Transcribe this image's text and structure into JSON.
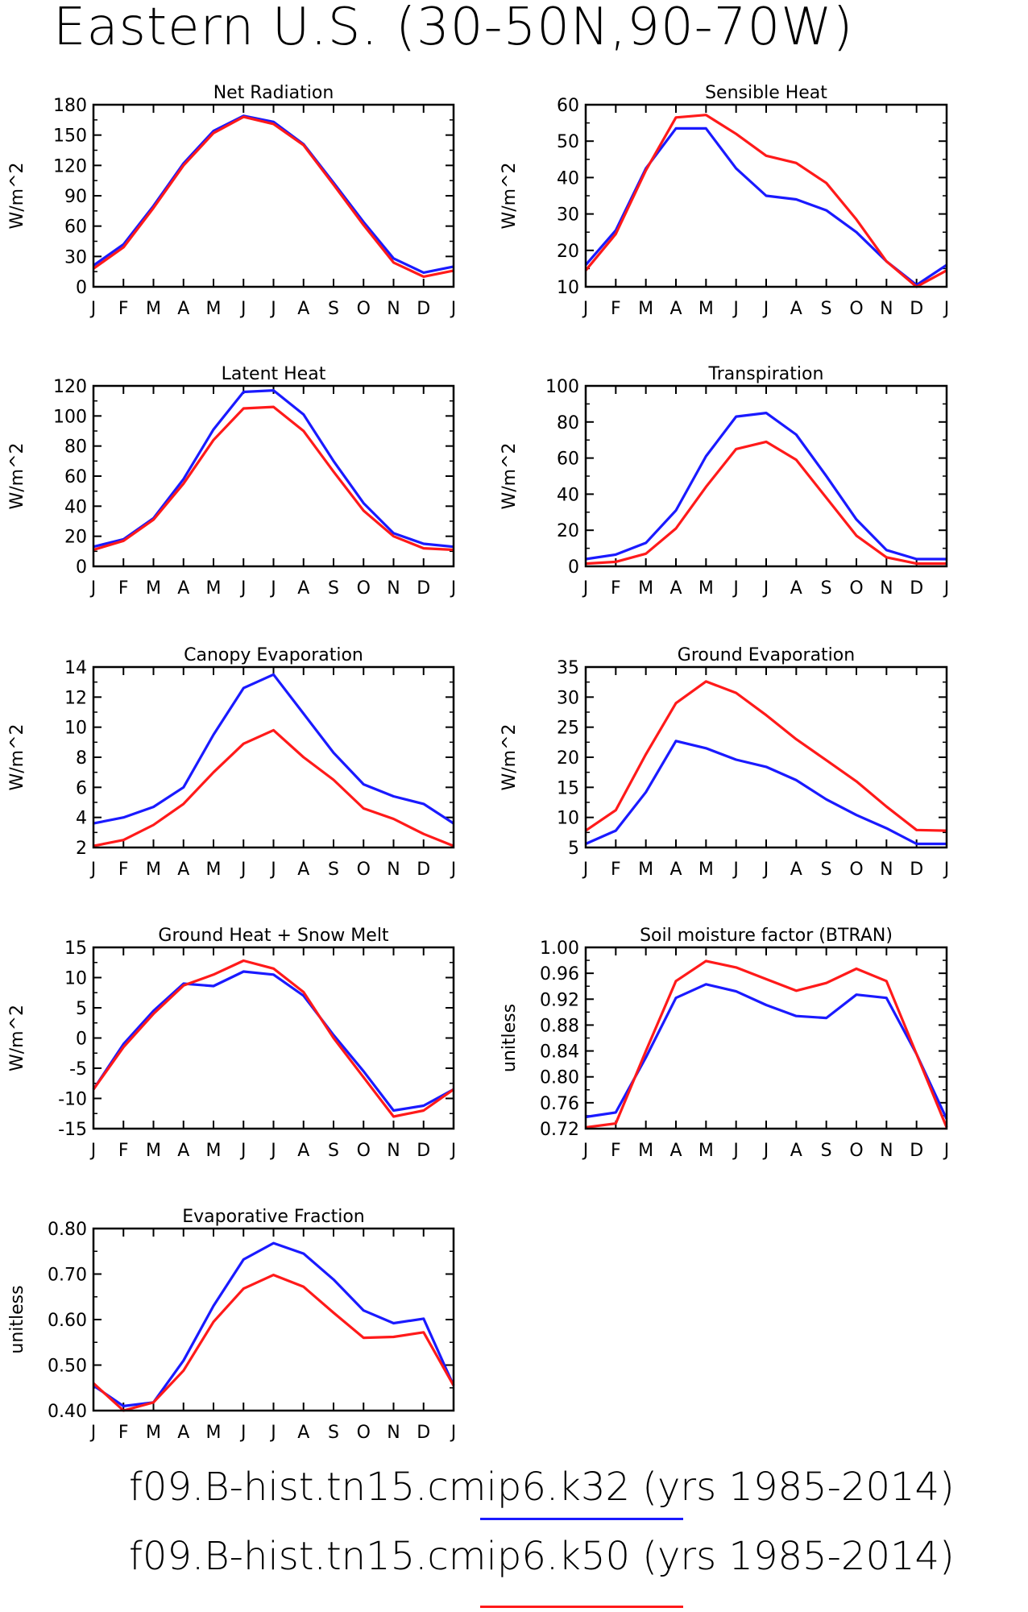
{
  "title": "Eastern U.S. (30-50N,90-70W)",
  "colors": {
    "k32": "#1a1aff",
    "k50": "#ff1a1a"
  },
  "legend": [
    {
      "label": "f09.B-hist.tn15.cmip6.k32 (yrs 1985-2014)",
      "color": "#1a1aff"
    },
    {
      "label": "f09.B-hist.tn15.cmip6.k50 (yrs 1985-2014)",
      "color": "#ff1a1a"
    }
  ],
  "chart_data": [
    {
      "type": "line",
      "title": "Net Radiation",
      "ylabel": "W/m^2",
      "categories": [
        "J",
        "F",
        "M",
        "A",
        "M",
        "J",
        "J",
        "A",
        "S",
        "O",
        "N",
        "D",
        "J"
      ],
      "ylim": [
        0,
        180
      ],
      "yticks": [
        0,
        30,
        60,
        90,
        120,
        150,
        180
      ],
      "ytick_labels": [
        "0",
        "30",
        "60",
        "90",
        "120",
        "150",
        "180"
      ],
      "series": [
        {
          "color": "#1a1aff",
          "values": [
            21,
            42,
            80,
            122,
            154,
            169,
            163,
            141,
            103,
            64,
            28,
            14,
            20
          ]
        },
        {
          "color": "#ff1a1a",
          "values": [
            18,
            39,
            78,
            120,
            152,
            168,
            161,
            140,
            101,
            61,
            24,
            10,
            16
          ]
        }
      ]
    },
    {
      "type": "line",
      "title": "Sensible Heat",
      "ylabel": "W/m^2",
      "categories": [
        "J",
        "F",
        "M",
        "A",
        "M",
        "J",
        "J",
        "A",
        "S",
        "O",
        "N",
        "D",
        "J"
      ],
      "ylim": [
        10,
        60
      ],
      "yticks": [
        10,
        20,
        30,
        40,
        50,
        60
      ],
      "ytick_labels": [
        "10",
        "20",
        "30",
        "40",
        "50",
        "60"
      ],
      "series": [
        {
          "color": "#1a1aff",
          "values": [
            16,
            25.5,
            42.5,
            53.5,
            53.5,
            42.5,
            35,
            34,
            31,
            25,
            17,
            10.5,
            16
          ]
        },
        {
          "color": "#ff1a1a",
          "values": [
            14.5,
            24.5,
            42,
            56.5,
            57.2,
            52,
            46,
            44,
            38.5,
            28.5,
            17,
            10,
            14.5
          ]
        }
      ]
    },
    {
      "type": "line",
      "title": "Latent Heat",
      "ylabel": "W/m^2",
      "categories": [
        "J",
        "F",
        "M",
        "A",
        "M",
        "J",
        "J",
        "A",
        "S",
        "O",
        "N",
        "D",
        "J"
      ],
      "ylim": [
        0,
        120
      ],
      "yticks": [
        0,
        20,
        40,
        60,
        80,
        100,
        120
      ],
      "ytick_labels": [
        "0",
        "20",
        "40",
        "60",
        "80",
        "100",
        "120"
      ],
      "series": [
        {
          "color": "#1a1aff",
          "values": [
            13,
            18,
            32,
            58,
            91,
            116,
            117,
            101,
            70,
            42,
            22,
            15,
            13
          ]
        },
        {
          "color": "#ff1a1a",
          "values": [
            11,
            17,
            31,
            55,
            84,
            105,
            106,
            90,
            63,
            37,
            20,
            12,
            11
          ]
        }
      ]
    },
    {
      "type": "line",
      "title": "Transpiration",
      "ylabel": "W/m^2",
      "categories": [
        "J",
        "F",
        "M",
        "A",
        "M",
        "J",
        "J",
        "A",
        "S",
        "O",
        "N",
        "D",
        "J"
      ],
      "ylim": [
        0,
        100
      ],
      "yticks": [
        0,
        20,
        40,
        60,
        80,
        100
      ],
      "ytick_labels": [
        "0",
        "20",
        "40",
        "60",
        "80",
        "100"
      ],
      "series": [
        {
          "color": "#1a1aff",
          "values": [
            4,
            6.5,
            13,
            31,
            61,
            83,
            85,
            73,
            50,
            26,
            9,
            4,
            4
          ]
        },
        {
          "color": "#ff1a1a",
          "values": [
            1.5,
            2.5,
            7,
            21,
            44,
            65,
            69,
            59,
            38,
            17,
            5,
            1.5,
            1.5
          ]
        }
      ]
    },
    {
      "type": "line",
      "title": "Canopy Evaporation",
      "ylabel": "W/m^2",
      "categories": [
        "J",
        "F",
        "M",
        "A",
        "M",
        "J",
        "J",
        "A",
        "S",
        "O",
        "N",
        "D",
        "J"
      ],
      "ylim": [
        2,
        14
      ],
      "yticks": [
        2,
        4,
        6,
        8,
        10,
        12,
        14
      ],
      "ytick_labels": [
        "2",
        "4",
        "6",
        "8",
        "10",
        "12",
        "14"
      ],
      "series": [
        {
          "color": "#1a1aff",
          "values": [
            3.6,
            4.0,
            4.7,
            6.0,
            9.5,
            12.6,
            13.5,
            10.9,
            8.3,
            6.2,
            5.4,
            4.9,
            3.6
          ]
        },
        {
          "color": "#ff1a1a",
          "values": [
            2.1,
            2.5,
            3.5,
            4.9,
            7.0,
            8.9,
            9.8,
            8.0,
            6.5,
            4.6,
            3.9,
            2.9,
            2.1
          ]
        }
      ]
    },
    {
      "type": "line",
      "title": "Ground Evaporation",
      "ylabel": "W/m^2",
      "categories": [
        "J",
        "F",
        "M",
        "A",
        "M",
        "J",
        "J",
        "A",
        "S",
        "O",
        "N",
        "D",
        "J"
      ],
      "ylim": [
        5,
        35
      ],
      "yticks": [
        5,
        10,
        15,
        20,
        25,
        30,
        35
      ],
      "ytick_labels": [
        "5",
        "10",
        "15",
        "20",
        "25",
        "30",
        "35"
      ],
      "series": [
        {
          "color": "#1a1aff",
          "values": [
            5.6,
            7.8,
            14.2,
            22.7,
            21.5,
            19.6,
            18.4,
            16.2,
            13.0,
            10.4,
            8.2,
            5.6,
            5.6
          ]
        },
        {
          "color": "#ff1a1a",
          "values": [
            7.8,
            11.2,
            20.5,
            29,
            32.6,
            30.7,
            27,
            23,
            19.5,
            16,
            11.8,
            7.9,
            7.8
          ]
        }
      ]
    },
    {
      "type": "line",
      "title": "Ground Heat + Snow Melt",
      "ylabel": "W/m^2",
      "categories": [
        "J",
        "F",
        "M",
        "A",
        "M",
        "J",
        "J",
        "A",
        "S",
        "O",
        "N",
        "D",
        "J"
      ],
      "ylim": [
        -15,
        15
      ],
      "yticks": [
        -15,
        -10,
        -5,
        0,
        5,
        10,
        15
      ],
      "ytick_labels": [
        "-15",
        "-10",
        "-5",
        "0",
        "5",
        "10",
        "15"
      ],
      "series": [
        {
          "color": "#1a1aff",
          "values": [
            -8.5,
            -1,
            4.5,
            9,
            8.6,
            11,
            10.5,
            7,
            0.5,
            -5.5,
            -12,
            -11.2,
            -8.5
          ]
        },
        {
          "color": "#ff1a1a",
          "values": [
            -8.5,
            -1.5,
            4,
            8.7,
            10.5,
            12.8,
            11.5,
            7.6,
            0,
            -6.5,
            -13,
            -12,
            -8.5
          ]
        }
      ]
    },
    {
      "type": "line",
      "title": "Soil moisture factor (BTRAN)",
      "ylabel": "unitless",
      "categories": [
        "J",
        "F",
        "M",
        "A",
        "M",
        "J",
        "J",
        "A",
        "S",
        "O",
        "N",
        "D",
        "J"
      ],
      "ylim": [
        0.72,
        1.0
      ],
      "yticks": [
        0.72,
        0.76,
        0.8,
        0.84,
        0.88,
        0.92,
        0.96,
        1.0
      ],
      "ytick_labels": [
        "0.72",
        "0.76",
        "0.80",
        "0.84",
        "0.88",
        "0.92",
        "0.96",
        "1.00"
      ],
      "series": [
        {
          "color": "#1a1aff",
          "values": [
            0.738,
            0.745,
            0.83,
            0.922,
            0.943,
            0.932,
            0.911,
            0.894,
            0.891,
            0.927,
            0.922,
            0.835,
            0.735
          ]
        },
        {
          "color": "#ff1a1a",
          "values": [
            0.722,
            0.728,
            0.84,
            0.948,
            0.979,
            0.969,
            0.951,
            0.933,
            0.945,
            0.967,
            0.948,
            0.835,
            0.722
          ]
        }
      ]
    },
    {
      "type": "line",
      "title": "Evaporative Fraction",
      "ylabel": "unitless",
      "categories": [
        "J",
        "F",
        "M",
        "A",
        "M",
        "J",
        "J",
        "A",
        "S",
        "O",
        "N",
        "D",
        "J"
      ],
      "ylim": [
        0.4,
        0.8
      ],
      "yticks": [
        0.4,
        0.5,
        0.6,
        0.7,
        0.8
      ],
      "ytick_labels": [
        "0.40",
        "0.50",
        "0.60",
        "0.70",
        "0.80"
      ],
      "series": [
        {
          "color": "#1a1aff",
          "values": [
            0.455,
            0.41,
            0.418,
            0.51,
            0.63,
            0.732,
            0.768,
            0.745,
            0.688,
            0.62,
            0.592,
            0.602,
            0.455
          ]
        },
        {
          "color": "#ff1a1a",
          "values": [
            0.46,
            0.4,
            0.418,
            0.488,
            0.595,
            0.668,
            0.698,
            0.672,
            0.615,
            0.56,
            0.562,
            0.572,
            0.455
          ]
        }
      ]
    }
  ]
}
